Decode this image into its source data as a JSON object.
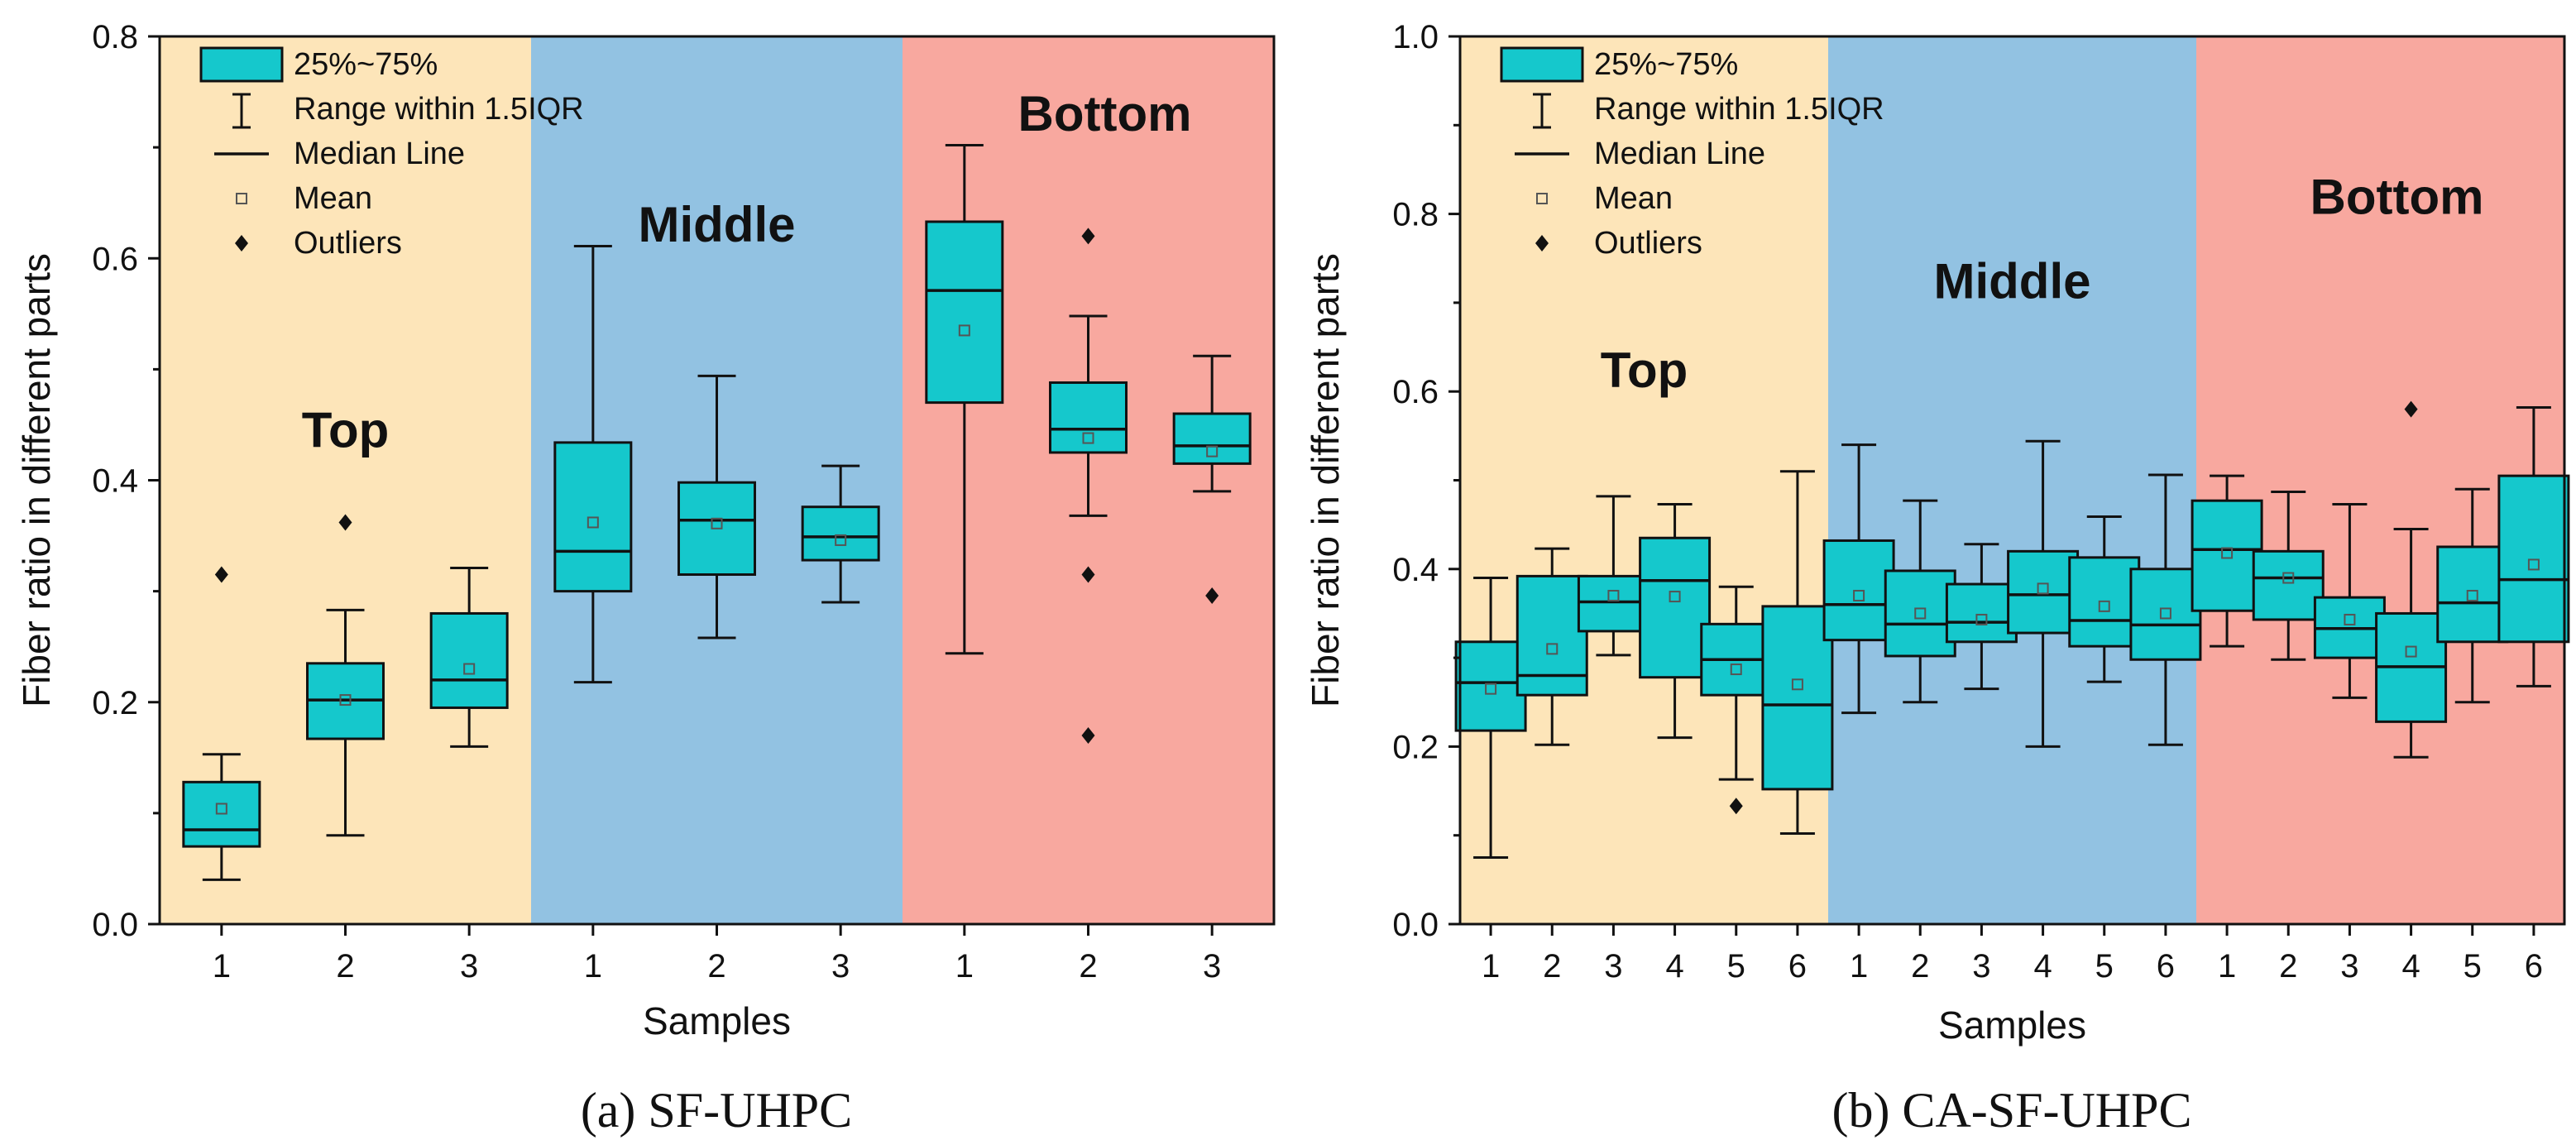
{
  "chart_data": [
    {
      "type": "boxplot",
      "id": "a",
      "caption": "(a)  SF-UHPC",
      "xlabel": "Samples",
      "ylabel": "Fiber ratio in different parts",
      "ylim": [
        0,
        0.8
      ],
      "yticks": [
        "0.0",
        "0.2",
        "0.4",
        "0.6",
        "0.8"
      ],
      "legend": {
        "box": "25%~75%",
        "whisker": "Range within 1.5IQR",
        "median": "Median Line",
        "mean": "Mean",
        "outliers": "Outliers"
      },
      "regions": [
        {
          "name": "Top",
          "color": "#FDE5B9",
          "label_y": 0.43
        },
        {
          "name": "Middle",
          "color": "#92C2E2",
          "label_y": 0.615
        },
        {
          "name": "Bottom",
          "color": "#F8A89F",
          "label_y": 0.715
        }
      ],
      "samples": [
        {
          "region": "Top",
          "label": "1",
          "whisker_low": 0.04,
          "q1": 0.07,
          "median": 0.085,
          "q3": 0.128,
          "whisker_high": 0.153,
          "mean": 0.104,
          "outliers": [
            0.315
          ]
        },
        {
          "region": "Top",
          "label": "2",
          "whisker_low": 0.08,
          "q1": 0.167,
          "median": 0.202,
          "q3": 0.235,
          "whisker_high": 0.283,
          "mean": 0.202,
          "outliers": [
            0.362
          ]
        },
        {
          "region": "Top",
          "label": "3",
          "whisker_low": 0.16,
          "q1": 0.195,
          "median": 0.22,
          "q3": 0.28,
          "whisker_high": 0.321,
          "mean": 0.23,
          "outliers": []
        },
        {
          "region": "Middle",
          "label": "1",
          "whisker_low": 0.218,
          "q1": 0.3,
          "median": 0.336,
          "q3": 0.434,
          "whisker_high": 0.611,
          "mean": 0.362,
          "outliers": []
        },
        {
          "region": "Middle",
          "label": "2",
          "whisker_low": 0.258,
          "q1": 0.315,
          "median": 0.364,
          "q3": 0.398,
          "whisker_high": 0.494,
          "mean": 0.361,
          "outliers": []
        },
        {
          "region": "Middle",
          "label": "3",
          "whisker_low": 0.29,
          "q1": 0.328,
          "median": 0.349,
          "q3": 0.376,
          "whisker_high": 0.413,
          "mean": 0.346,
          "outliers": []
        },
        {
          "region": "Bottom",
          "label": "1",
          "whisker_low": 0.244,
          "q1": 0.47,
          "median": 0.571,
          "q3": 0.633,
          "whisker_high": 0.702,
          "mean": 0.535,
          "outliers": []
        },
        {
          "region": "Bottom",
          "label": "2",
          "whisker_low": 0.368,
          "q1": 0.425,
          "median": 0.446,
          "q3": 0.488,
          "whisker_high": 0.548,
          "mean": 0.438,
          "outliers": [
            0.62,
            0.315,
            0.17
          ]
        },
        {
          "region": "Bottom",
          "label": "3",
          "whisker_low": 0.39,
          "q1": 0.415,
          "median": 0.431,
          "q3": 0.46,
          "whisker_high": 0.512,
          "mean": 0.426,
          "outliers": [
            0.296
          ]
        }
      ]
    },
    {
      "type": "boxplot",
      "id": "b",
      "caption": "(b)  CA-SF-UHPC",
      "xlabel": "Samples",
      "ylabel": "Fiber ratio in different parts",
      "ylim": [
        0,
        1.0
      ],
      "yticks": [
        "0.0",
        "0.2",
        "0.4",
        "0.6",
        "0.8",
        "1.0"
      ],
      "legend": {
        "box": "25%~75%",
        "whisker": "Range within 1.5IQR",
        "median": "Median Line",
        "mean": "Mean",
        "outliers": "Outliers"
      },
      "regions": [
        {
          "name": "Top",
          "color": "#FDE5B9",
          "label_y": 0.605
        },
        {
          "name": "Middle",
          "color": "#92C2E2",
          "label_y": 0.705
        },
        {
          "name": "Bottom",
          "color": "#F8A89F",
          "label_y": 0.8
        }
      ],
      "samples": [
        {
          "region": "Top",
          "label": "1",
          "whisker_low": 0.075,
          "q1": 0.218,
          "median": 0.272,
          "q3": 0.318,
          "whisker_high": 0.39,
          "mean": 0.265,
          "outliers": []
        },
        {
          "region": "Top",
          "label": "2",
          "whisker_low": 0.202,
          "q1": 0.258,
          "median": 0.28,
          "q3": 0.392,
          "whisker_high": 0.423,
          "mean": 0.31,
          "outliers": []
        },
        {
          "region": "Top",
          "label": "3",
          "whisker_low": 0.303,
          "q1": 0.33,
          "median": 0.363,
          "q3": 0.392,
          "whisker_high": 0.482,
          "mean": 0.37,
          "outliers": []
        },
        {
          "region": "Top",
          "label": "4",
          "whisker_low": 0.21,
          "q1": 0.278,
          "median": 0.387,
          "q3": 0.435,
          "whisker_high": 0.473,
          "mean": 0.369,
          "outliers": []
        },
        {
          "region": "Top",
          "label": "5",
          "whisker_low": 0.163,
          "q1": 0.258,
          "median": 0.298,
          "q3": 0.338,
          "whisker_high": 0.38,
          "mean": 0.287,
          "outliers": [
            0.133
          ]
        },
        {
          "region": "Top",
          "label": "6",
          "whisker_low": 0.102,
          "q1": 0.152,
          "median": 0.247,
          "q3": 0.358,
          "whisker_high": 0.51,
          "mean": 0.27,
          "outliers": []
        },
        {
          "region": "Middle",
          "label": "1",
          "whisker_low": 0.238,
          "q1": 0.32,
          "median": 0.36,
          "q3": 0.432,
          "whisker_high": 0.54,
          "mean": 0.37,
          "outliers": []
        },
        {
          "region": "Middle",
          "label": "2",
          "whisker_low": 0.25,
          "q1": 0.302,
          "median": 0.338,
          "q3": 0.398,
          "whisker_high": 0.477,
          "mean": 0.35,
          "outliers": []
        },
        {
          "region": "Middle",
          "label": "3",
          "whisker_low": 0.265,
          "q1": 0.318,
          "median": 0.34,
          "q3": 0.383,
          "whisker_high": 0.428,
          "mean": 0.343,
          "outliers": []
        },
        {
          "region": "Middle",
          "label": "4",
          "whisker_low": 0.2,
          "q1": 0.328,
          "median": 0.371,
          "q3": 0.42,
          "whisker_high": 0.544,
          "mean": 0.378,
          "outliers": []
        },
        {
          "region": "Middle",
          "label": "5",
          "whisker_low": 0.273,
          "q1": 0.313,
          "median": 0.342,
          "q3": 0.413,
          "whisker_high": 0.459,
          "mean": 0.358,
          "outliers": []
        },
        {
          "region": "Middle",
          "label": "6",
          "whisker_low": 0.202,
          "q1": 0.298,
          "median": 0.337,
          "q3": 0.4,
          "whisker_high": 0.506,
          "mean": 0.35,
          "outliers": []
        },
        {
          "region": "Bottom",
          "label": "1",
          "whisker_low": 0.313,
          "q1": 0.353,
          "median": 0.422,
          "q3": 0.477,
          "whisker_high": 0.505,
          "mean": 0.418,
          "outliers": []
        },
        {
          "region": "Bottom",
          "label": "2",
          "whisker_low": 0.298,
          "q1": 0.343,
          "median": 0.39,
          "q3": 0.42,
          "whisker_high": 0.487,
          "mean": 0.39,
          "outliers": []
        },
        {
          "region": "Bottom",
          "label": "3",
          "whisker_low": 0.255,
          "q1": 0.3,
          "median": 0.333,
          "q3": 0.368,
          "whisker_high": 0.473,
          "mean": 0.343,
          "outliers": []
        },
        {
          "region": "Bottom",
          "label": "4",
          "whisker_low": 0.188,
          "q1": 0.228,
          "median": 0.29,
          "q3": 0.35,
          "whisker_high": 0.445,
          "mean": 0.307,
          "outliers": [
            0.58
          ]
        },
        {
          "region": "Bottom",
          "label": "5",
          "whisker_low": 0.25,
          "q1": 0.318,
          "median": 0.362,
          "q3": 0.425,
          "whisker_high": 0.49,
          "mean": 0.37,
          "outliers": []
        },
        {
          "region": "Bottom",
          "label": "6",
          "whisker_low": 0.268,
          "q1": 0.318,
          "median": 0.388,
          "q3": 0.505,
          "whisker_high": 0.582,
          "mean": 0.405,
          "outliers": []
        }
      ]
    }
  ],
  "colors": {
    "box_fill": "#15C8CC",
    "stroke": "#111111",
    "mean_stroke": "#555555"
  }
}
